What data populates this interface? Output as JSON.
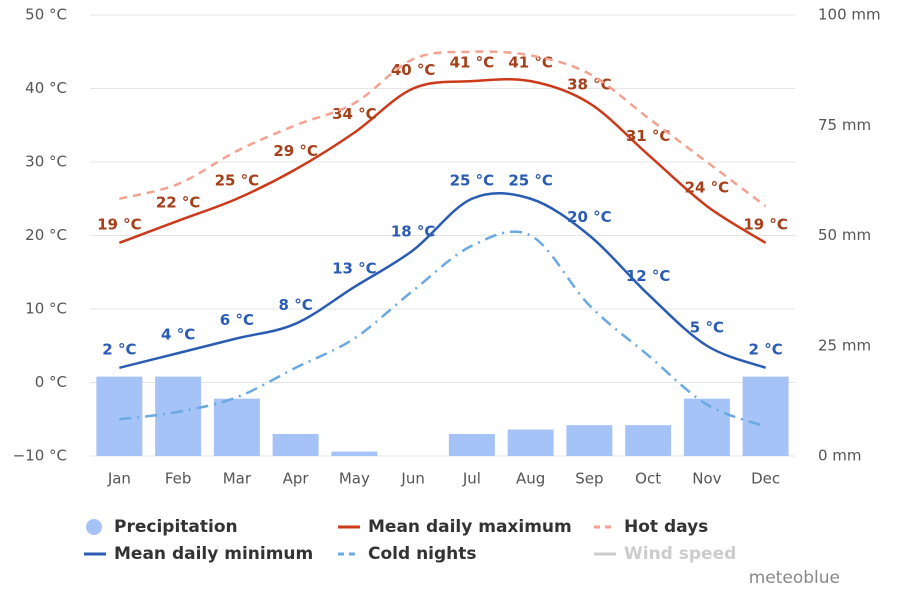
{
  "chart_data": {
    "type": "combo",
    "categories": [
      "Jan",
      "Feb",
      "Mar",
      "Apr",
      "May",
      "Jun",
      "Jul",
      "Aug",
      "Sep",
      "Oct",
      "Nov",
      "Dec"
    ],
    "ylim": [
      -10,
      50
    ],
    "yticks": [
      {
        "value": -10,
        "label": "−10 °C"
      },
      {
        "value": 0,
        "label": "0 °C"
      },
      {
        "value": 10,
        "label": "10 °C"
      },
      {
        "value": 20,
        "label": "20 °C"
      },
      {
        "value": 30,
        "label": "30 °C"
      },
      {
        "value": 40,
        "label": "40 °C"
      },
      {
        "value": 50,
        "label": "50 °C"
      }
    ],
    "y2lim": [
      0,
      100
    ],
    "y2ticks": [
      {
        "value": 0,
        "label": "0 mm"
      },
      {
        "value": 25,
        "label": "25 mm"
      },
      {
        "value": 50,
        "label": "50 mm"
      },
      {
        "value": 75,
        "label": "75 mm"
      },
      {
        "value": 100,
        "label": "100 mm"
      }
    ],
    "grid": true,
    "series": [
      {
        "name": "Precipitation",
        "kind": "bar",
        "axis": "y2",
        "color": "#a6c3f7",
        "values": [
          18,
          18,
          13,
          5,
          1,
          0,
          5,
          6,
          7,
          7,
          13,
          18
        ]
      },
      {
        "name": "Mean daily maximum",
        "kind": "line",
        "color": "#cc3a1b",
        "values": [
          19,
          22,
          25,
          29,
          34,
          40,
          41,
          41,
          38,
          31,
          24,
          19
        ],
        "value_labels": [
          "19 °C",
          "22 °C",
          "25 °C",
          "29 °C",
          "34 °C",
          "40 °C",
          "41 °C",
          "41 °C",
          "38 °C",
          "31 °C",
          "24 °C",
          "19 °C"
        ],
        "label_color": "#a5401b"
      },
      {
        "name": "Hot days",
        "kind": "line",
        "dash": "8,6",
        "color": "#f3a28f",
        "values": [
          25,
          27,
          31.5,
          35,
          38,
          44,
          45,
          44.5,
          42,
          36,
          30,
          24
        ]
      },
      {
        "name": "Mean daily minimum",
        "kind": "line",
        "color": "#2b5cb3",
        "values": [
          2,
          4,
          6,
          8,
          13,
          18,
          25,
          25,
          20,
          12,
          5,
          2
        ],
        "value_labels": [
          "2 °C",
          "4 °C",
          "6 °C",
          "8 °C",
          "13 °C",
          "18 °C",
          "25 °C",
          "25 °C",
          "20 °C",
          "12 °C",
          "5 °C",
          "2 °C"
        ],
        "label_color": "#2b5cb3"
      },
      {
        "name": "Cold nights",
        "kind": "line",
        "dash": "12,6,2,6",
        "color": "#6aa9e2",
        "values": [
          -5,
          -4,
          -2,
          2,
          6,
          12.5,
          18.6,
          20,
          10.5,
          3.7,
          -3,
          -6
        ]
      },
      {
        "name": "Wind speed",
        "kind": "line",
        "visible": false,
        "color": "#cccccc"
      }
    ],
    "credit": "meteoblue"
  }
}
